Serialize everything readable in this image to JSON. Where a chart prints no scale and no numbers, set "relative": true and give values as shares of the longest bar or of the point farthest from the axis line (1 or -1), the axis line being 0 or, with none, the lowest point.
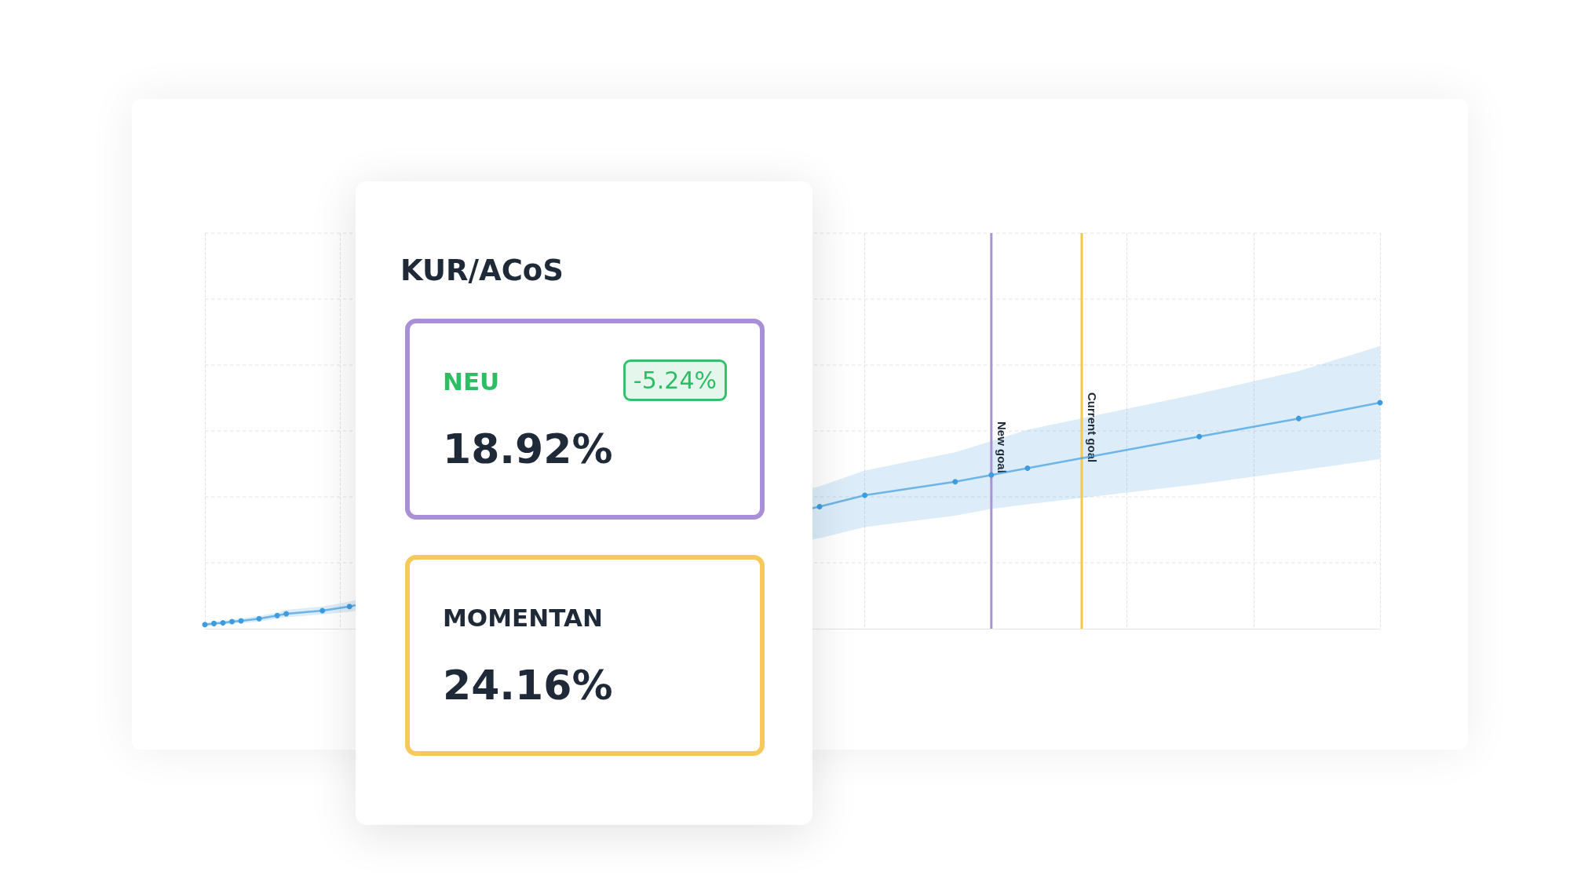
{
  "chart_data": [
    {
      "type": "line",
      "relative": true,
      "grid": true,
      "marker": "circle",
      "line_style": "solid",
      "categories": [
        null,
        null,
        null,
        null,
        null,
        null,
        null,
        null,
        null,
        null,
        null,
        null,
        null,
        null,
        null,
        null,
        null,
        null,
        null,
        null,
        null,
        null,
        null,
        null,
        null,
        null,
        null,
        null,
        null,
        null,
        null,
        null,
        null,
        null,
        null,
        null,
        null,
        null,
        null,
        null,
        null,
        null,
        null,
        null,
        null,
        null,
        null,
        null,
        null,
        null,
        null,
        null,
        null,
        null,
        null,
        null,
        null,
        null,
        null,
        null,
        null,
        null,
        null,
        null,
        null,
        null,
        null,
        null,
        null,
        null,
        null,
        null,
        null,
        null,
        null,
        null,
        null,
        null,
        null,
        null,
        null,
        null,
        null,
        null,
        null,
        null,
        null,
        null,
        null,
        null,
        null,
        null,
        null,
        null,
        null,
        null,
        null,
        null,
        null,
        null,
        null,
        null,
        null,
        null,
        null,
        null,
        null,
        null,
        null,
        null,
        null,
        null,
        null,
        null,
        null,
        null,
        null,
        null,
        null,
        null,
        null,
        null,
        null,
        null,
        null,
        null,
        null,
        null,
        null,
        null,
        null
      ],
      "series": [
        {
          "color": "#3d9be0",
          "values": [
            0.018,
            0.023,
            0.026,
            0.031,
            0.035,
            null,
            0.044,
            null,
            0.058,
            0.066,
            null,
            null,
            null,
            0.08,
            null,
            null,
            0.098,
            null,
            null,
            null,
            null,
            null,
            null,
            null,
            null,
            null,
            null,
            null,
            null,
            null,
            null,
            null,
            null,
            null,
            null,
            null,
            null,
            null,
            null,
            null,
            null,
            null,
            null,
            null,
            null,
            null,
            null,
            null,
            null,
            null,
            null,
            null,
            null,
            null,
            null,
            null,
            null,
            null,
            null,
            null,
            null,
            null,
            null,
            null,
            null,
            null,
            null,
            null,
            0.54,
            null,
            null,
            null,
            null,
            0.59,
            null,
            null,
            null,
            null,
            null,
            null,
            null,
            null,
            null,
            0.65,
            null,
            null,
            null,
            0.68,
            null,
            null,
            null,
            0.71,
            null,
            null,
            null,
            null,
            null,
            null,
            null,
            null,
            null,
            null,
            null,
            null,
            null,
            null,
            null,
            null,
            null,
            null,
            0.85,
            null,
            null,
            null,
            null,
            null,
            null,
            null,
            null,
            null,
            null,
            0.93,
            null,
            null,
            null,
            null,
            null,
            null,
            null,
            null,
            1
          ],
          "lower": [
            0.009,
            0.014,
            0.018,
            0.023,
            0.025,
            null,
            0.031,
            null,
            0.044,
            0.05,
            null,
            null,
            null,
            0.063,
            null,
            null,
            0.075,
            null,
            null,
            null,
            null,
            null,
            null,
            null,
            null,
            null,
            null,
            null,
            null,
            null,
            null,
            null,
            null,
            null,
            null,
            null,
            null,
            null,
            null,
            null,
            null,
            null,
            null,
            null,
            null,
            null,
            null,
            null,
            null,
            null,
            null,
            null,
            null,
            null,
            null,
            null,
            null,
            null,
            null,
            null,
            null,
            null,
            null,
            null,
            null,
            null,
            null,
            null,
            0.4,
            null,
            null,
            null,
            null,
            0.45,
            null,
            null,
            null,
            null,
            null,
            null,
            null,
            null,
            null,
            0.5,
            null,
            null,
            null,
            0.53,
            null,
            null,
            null,
            0.55,
            null,
            null,
            null,
            null,
            null,
            null,
            null,
            null,
            null,
            null,
            null,
            null,
            null,
            null,
            null,
            null,
            null,
            null,
            0.64,
            null,
            null,
            null,
            null,
            null,
            null,
            null,
            null,
            null,
            null,
            0.7,
            null,
            null,
            null,
            null,
            null,
            null,
            null,
            null,
            0.75
          ],
          "upper": [
            0.026,
            0.031,
            0.035,
            0.04,
            0.045,
            null,
            0.056,
            null,
            0.071,
            0.083,
            null,
            null,
            null,
            0.098,
            null,
            null,
            0.12,
            null,
            null,
            null,
            null,
            null,
            null,
            null,
            null,
            null,
            null,
            null,
            null,
            null,
            null,
            null,
            null,
            null,
            null,
            null,
            null,
            null,
            null,
            null,
            null,
            null,
            null,
            null,
            null,
            null,
            null,
            null,
            null,
            null,
            null,
            null,
            null,
            null,
            null,
            null,
            null,
            null,
            null,
            null,
            null,
            null,
            null,
            null,
            null,
            null,
            null,
            null,
            0.63,
            null,
            null,
            null,
            null,
            0.7,
            null,
            null,
            null,
            null,
            null,
            null,
            null,
            null,
            null,
            0.78,
            null,
            null,
            null,
            0.83,
            null,
            null,
            null,
            0.88,
            null,
            null,
            null,
            null,
            null,
            null,
            null,
            null,
            null,
            null,
            null,
            null,
            null,
            null,
            null,
            null,
            null,
            null,
            1.04,
            null,
            null,
            null,
            null,
            null,
            null,
            null,
            null,
            null,
            null,
            1.14,
            null,
            null,
            null,
            null,
            null,
            null,
            null,
            null,
            1.25
          ]
        }
      ],
      "annotations": [
        "New goal",
        "Current goal"
      ]
    },
    {
      "type": "other",
      "title": "KUR/ACoS",
      "annotations": [
        "NEU",
        "-5.24%",
        "18.92%",
        "MOMENTAN",
        "24.16%"
      ]
    }
  ]
}
